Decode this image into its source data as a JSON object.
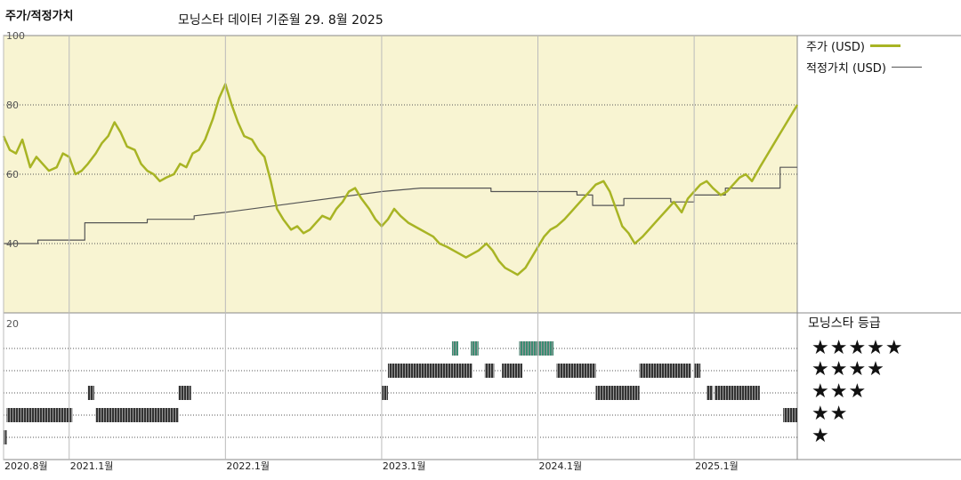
{
  "header": {
    "title": "주가/적정가치",
    "asof": "모닝스타 데이터 기준월 29. 8월 2025"
  },
  "legend": {
    "price": "주가 (USD)",
    "fair_value": "적정가치 (USD)"
  },
  "rating_panel": {
    "title": "모닝스타 등급",
    "rows": [
      "★★★★★",
      "★★★★",
      "★★★",
      "★★",
      "★"
    ]
  },
  "colors": {
    "price": "#a8b424",
    "fair_value": "#555555",
    "upper_bg": "#f8f4d2",
    "bar_dark": "#333333",
    "bar_green": "#3a8c72"
  },
  "chart_data": {
    "type": "line",
    "ylim": [
      20,
      100
    ],
    "yticks": [
      20,
      40,
      60,
      80,
      100
    ],
    "xtick_labels": [
      "2020.8월",
      "2021.1월",
      "2022.1월",
      "2023.1월",
      "2024.1월",
      "2025.1월"
    ],
    "xtick_dates": [
      2020.58,
      2021.0,
      2022.0,
      2023.0,
      2024.0,
      2025.0
    ],
    "xrange": [
      2020.58,
      2025.66
    ],
    "series": [
      {
        "name": "주가 (USD)",
        "x": [
          2020.58,
          2020.62,
          2020.66,
          2020.7,
          2020.75,
          2020.79,
          2020.83,
          2020.87,
          2020.92,
          2020.96,
          2021.0,
          2021.04,
          2021.08,
          2021.12,
          2021.17,
          2021.21,
          2021.25,
          2021.29,
          2021.33,
          2021.37,
          2021.42,
          2021.46,
          2021.5,
          2021.54,
          2021.58,
          2021.62,
          2021.67,
          2021.71,
          2021.75,
          2021.79,
          2021.83,
          2021.87,
          2021.92,
          2021.96,
          2022.0,
          2022.04,
          2022.08,
          2022.12,
          2022.17,
          2022.21,
          2022.25,
          2022.29,
          2022.33,
          2022.37,
          2022.42,
          2022.46,
          2022.5,
          2022.54,
          2022.58,
          2022.62,
          2022.67,
          2022.71,
          2022.75,
          2022.79,
          2022.83,
          2022.87,
          2022.92,
          2022.96,
          2023.0,
          2023.04,
          2023.08,
          2023.12,
          2023.17,
          2023.21,
          2023.25,
          2023.29,
          2023.33,
          2023.37,
          2023.42,
          2023.46,
          2023.5,
          2023.54,
          2023.58,
          2023.62,
          2023.67,
          2023.71,
          2023.75,
          2023.79,
          2023.83,
          2023.87,
          2023.92,
          2023.96,
          2024.0,
          2024.04,
          2024.08,
          2024.12,
          2024.17,
          2024.21,
          2024.25,
          2024.29,
          2024.33,
          2024.37,
          2024.42,
          2024.46,
          2024.5,
          2024.54,
          2024.58,
          2024.62,
          2024.67,
          2024.71,
          2024.75,
          2024.79,
          2024.83,
          2024.87,
          2024.92,
          2024.96,
          2025.0,
          2025.04,
          2025.08,
          2025.12,
          2025.17,
          2025.21,
          2025.25,
          2025.29,
          2025.33,
          2025.37,
          2025.42,
          2025.46,
          2025.5,
          2025.54,
          2025.58,
          2025.62,
          2025.66
        ],
        "y": [
          71,
          67,
          66,
          70,
          62,
          65,
          63,
          61,
          62,
          66,
          65,
          60,
          61,
          63,
          66,
          69,
          71,
          75,
          72,
          68,
          67,
          63,
          61,
          60,
          58,
          59,
          60,
          63,
          62,
          66,
          67,
          70,
          76,
          82,
          86,
          80,
          75,
          71,
          70,
          67,
          65,
          58,
          50,
          47,
          44,
          45,
          43,
          44,
          46,
          48,
          47,
          50,
          52,
          55,
          56,
          53,
          50,
          47,
          45,
          47,
          50,
          48,
          46,
          45,
          44,
          43,
          42,
          40,
          39,
          38,
          37,
          36,
          37,
          38,
          40,
          38,
          35,
          33,
          32,
          31,
          33,
          36,
          39,
          42,
          44,
          45,
          47,
          49,
          51,
          53,
          55,
          57,
          58,
          55,
          50,
          45,
          43,
          40,
          42,
          44,
          46,
          48,
          50,
          52,
          49,
          53,
          55,
          57,
          58,
          56,
          54,
          55,
          57,
          59,
          60,
          58,
          62,
          65,
          68,
          71,
          74,
          77,
          80
        ]
      },
      {
        "name": "적정가치 (USD)",
        "x": [
          2020.58,
          2020.8,
          2020.8,
          2021.1,
          2021.1,
          2021.5,
          2021.5,
          2021.8,
          2021.8,
          2022.0,
          2022.5,
          2023.0,
          2023.25,
          2023.25,
          2023.7,
          2023.7,
          2023.9,
          2023.9,
          2024.25,
          2024.25,
          2024.35,
          2024.35,
          2024.55,
          2024.55,
          2024.85,
          2024.85,
          2025.0,
          2025.0,
          2025.2,
          2025.2,
          2025.55,
          2025.55,
          2025.66
        ],
        "y": [
          40,
          40,
          41,
          41,
          46,
          46,
          47,
          47,
          48,
          49,
          52,
          55,
          56,
          56,
          56,
          55,
          55,
          55,
          55,
          54,
          54,
          51,
          51,
          53,
          53,
          52,
          52,
          54,
          54,
          56,
          56,
          62,
          62
        ]
      }
    ]
  },
  "rating_history": {
    "levels": [
      5,
      4,
      3,
      2,
      1
    ],
    "segments": [
      {
        "stars": 1,
        "from": 2020.58,
        "to": 2020.6
      },
      {
        "stars": 2,
        "from": 2020.6,
        "to": 2021.02
      },
      {
        "stars": 3,
        "from": 2021.12,
        "to": 2021.16
      },
      {
        "stars": 2,
        "from": 2021.17,
        "to": 2021.7
      },
      {
        "stars": 3,
        "from": 2021.7,
        "to": 2021.78
      },
      {
        "stars": 3,
        "from": 2023.0,
        "to": 2023.04
      },
      {
        "stars": 4,
        "from": 2023.04,
        "to": 2023.58
      },
      {
        "stars": 5,
        "from": 2023.45,
        "to": 2023.49
      },
      {
        "stars": 5,
        "from": 2023.57,
        "to": 2023.62
      },
      {
        "stars": 4,
        "from": 2023.66,
        "to": 2023.72
      },
      {
        "stars": 4,
        "from": 2023.77,
        "to": 2023.9
      },
      {
        "stars": 5,
        "from": 2023.88,
        "to": 2024.1
      },
      {
        "stars": 4,
        "from": 2024.12,
        "to": 2024.37
      },
      {
        "stars": 3,
        "from": 2024.37,
        "to": 2024.65
      },
      {
        "stars": 4,
        "from": 2024.65,
        "to": 2024.98
      },
      {
        "stars": 4,
        "from": 2025.0,
        "to": 2025.04
      },
      {
        "stars": 3,
        "from": 2025.08,
        "to": 2025.12
      },
      {
        "stars": 3,
        "from": 2025.13,
        "to": 2025.42
      },
      {
        "stars": 2,
        "from": 2025.57,
        "to": 2025.66
      }
    ]
  }
}
